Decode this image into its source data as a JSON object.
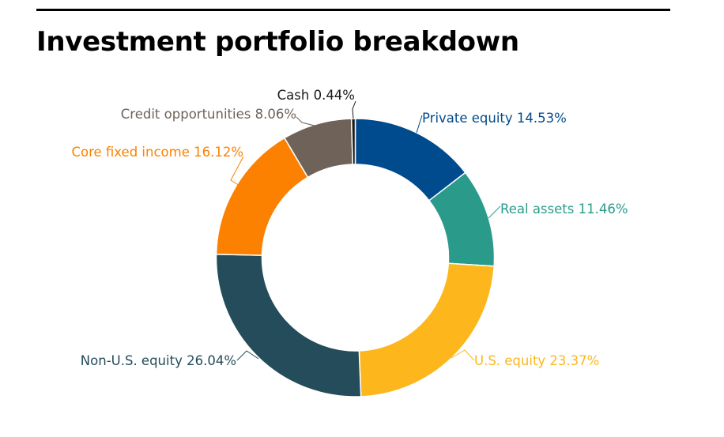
{
  "title": "Investment portfolio breakdown",
  "chart_data": {
    "type": "pie",
    "variant": "donut",
    "title": "Investment portfolio breakdown",
    "legend": "none",
    "slices": [
      {
        "label": "Private equity",
        "value": 14.53,
        "value_text": "14.53%",
        "color": "#004b8d"
      },
      {
        "label": "Real assets",
        "value": 11.46,
        "value_text": "11.46%",
        "color": "#2a9b8b"
      },
      {
        "label": "U.S. equity",
        "value": 23.37,
        "value_text": "23.37%",
        "color": "#fdb71d"
      },
      {
        "label": "Non-U.S. equity",
        "value": 26.04,
        "value_text": "26.04%",
        "color": "#244c5a"
      },
      {
        "label": "Core fixed income",
        "value": 16.12,
        "value_text": "16.12%",
        "color": "#fd8100"
      },
      {
        "label": "Credit opportunities",
        "value": 8.06,
        "value_text": "8.06%",
        "color": "#6e6259"
      },
      {
        "label": "Cash",
        "value": 0.44,
        "value_text": "0.44%",
        "color": "#1a1a1a"
      }
    ]
  }
}
